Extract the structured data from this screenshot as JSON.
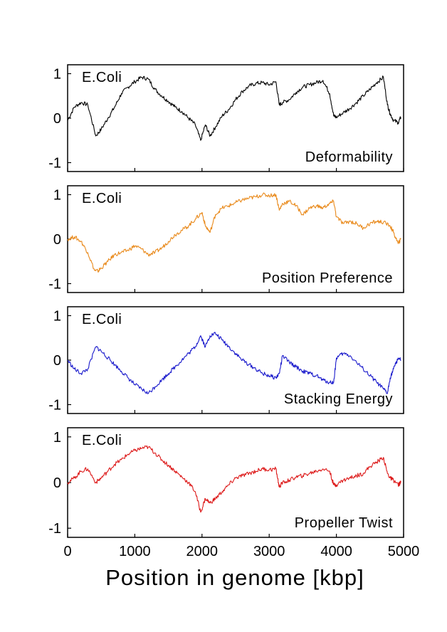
{
  "chart_data": {
    "type": "line",
    "xlabel": "Position in genome [kbp]",
    "xlim": [
      0,
      5000
    ],
    "xticks": [
      "0",
      "1000",
      "2000",
      "3000",
      "4000",
      "5000"
    ],
    "panels": [
      {
        "organism": "E.Coli",
        "name": "Deformability",
        "color": "#000000",
        "ylim": [
          -1.2,
          1.2
        ],
        "yticks": [
          "1",
          "0",
          "-1"
        ],
        "x": [
          0,
          100,
          200,
          300,
          420,
          500,
          600,
          700,
          800,
          900,
          1000,
          1100,
          1200,
          1300,
          1400,
          1500,
          1600,
          1700,
          1800,
          1900,
          1980,
          2050,
          2120,
          2200,
          2300,
          2400,
          2500,
          2600,
          2700,
          2800,
          2900,
          3000,
          3100,
          3150,
          3200,
          3300,
          3400,
          3500,
          3600,
          3700,
          3800,
          3900,
          3960,
          4000,
          4100,
          4200,
          4300,
          4400,
          4500,
          4600,
          4700,
          4760,
          4800,
          4850,
          4920,
          4960
        ],
        "y": [
          -0.05,
          0.25,
          0.35,
          0.3,
          -0.4,
          -0.25,
          0.0,
          0.25,
          0.55,
          0.7,
          0.82,
          0.92,
          0.88,
          0.65,
          0.5,
          0.38,
          0.25,
          0.15,
          0.0,
          -0.15,
          -0.5,
          -0.15,
          -0.4,
          -0.2,
          0.05,
          0.2,
          0.42,
          0.6,
          0.72,
          0.78,
          0.8,
          0.75,
          0.82,
          0.3,
          0.35,
          0.42,
          0.58,
          0.7,
          0.75,
          0.8,
          0.85,
          0.55,
          0.05,
          0.02,
          0.12,
          0.22,
          0.35,
          0.5,
          0.65,
          0.8,
          0.92,
          0.3,
          0.1,
          -0.05,
          -0.1,
          0.02
        ]
      },
      {
        "organism": "E.Coli",
        "name": "Position Preference",
        "color": "#e98a1c",
        "ylim": [
          -1.2,
          1.2
        ],
        "yticks": [
          "1",
          "0",
          "-1"
        ],
        "x": [
          0,
          100,
          200,
          300,
          400,
          450,
          500,
          600,
          700,
          800,
          900,
          1000,
          1100,
          1200,
          1300,
          1400,
          1500,
          1600,
          1700,
          1800,
          1900,
          2000,
          2050,
          2120,
          2200,
          2300,
          2400,
          2500,
          2600,
          2700,
          2800,
          2900,
          3000,
          3100,
          3150,
          3200,
          3300,
          3400,
          3500,
          3600,
          3700,
          3800,
          3900,
          3960,
          4000,
          4100,
          4200,
          4300,
          4400,
          4500,
          4600,
          4700,
          4800,
          4850,
          4920,
          4960
        ],
        "y": [
          0.0,
          0.05,
          -0.05,
          -0.3,
          -0.7,
          -0.72,
          -0.65,
          -0.5,
          -0.35,
          -0.3,
          -0.25,
          -0.15,
          -0.22,
          -0.35,
          -0.3,
          -0.2,
          -0.05,
          0.1,
          0.2,
          0.3,
          0.45,
          0.6,
          0.3,
          0.15,
          0.55,
          0.7,
          0.75,
          0.82,
          0.88,
          0.92,
          0.95,
          1.0,
          0.98,
          1.0,
          0.65,
          0.8,
          0.85,
          0.75,
          0.55,
          0.7,
          0.75,
          0.7,
          0.8,
          0.85,
          0.5,
          0.35,
          0.4,
          0.35,
          0.25,
          0.35,
          0.4,
          0.38,
          0.3,
          0.15,
          -0.1,
          0.0
        ]
      },
      {
        "organism": "E.Coli",
        "name": "Stacking Energy",
        "color": "#1a1acc",
        "ylim": [
          -1.2,
          1.2
        ],
        "yticks": [
          "1",
          "0",
          "-1"
        ],
        "x": [
          0,
          100,
          200,
          300,
          420,
          500,
          600,
          700,
          800,
          900,
          1000,
          1100,
          1200,
          1300,
          1400,
          1500,
          1600,
          1700,
          1800,
          1900,
          1980,
          2050,
          2120,
          2200,
          2300,
          2400,
          2500,
          2600,
          2700,
          2800,
          2900,
          3000,
          3100,
          3150,
          3200,
          3300,
          3400,
          3500,
          3600,
          3700,
          3800,
          3900,
          3960,
          4000,
          4100,
          4200,
          4300,
          4400,
          4500,
          4600,
          4700,
          4760,
          4800,
          4850,
          4920,
          4960
        ],
        "y": [
          0.0,
          -0.2,
          -0.3,
          -0.2,
          0.3,
          0.2,
          0.05,
          -0.1,
          -0.25,
          -0.4,
          -0.55,
          -0.65,
          -0.75,
          -0.6,
          -0.45,
          -0.3,
          -0.15,
          0.0,
          0.15,
          0.3,
          0.55,
          0.3,
          0.55,
          0.6,
          0.45,
          0.3,
          0.15,
          0.0,
          -0.1,
          -0.2,
          -0.3,
          -0.35,
          -0.4,
          -0.3,
          0.1,
          -0.05,
          -0.15,
          -0.25,
          -0.3,
          -0.35,
          -0.45,
          -0.5,
          -0.5,
          0.05,
          0.15,
          0.1,
          -0.05,
          -0.2,
          -0.35,
          -0.5,
          -0.65,
          -0.75,
          -0.4,
          -0.2,
          0.05,
          0.0
        ]
      },
      {
        "organism": "E.Coli",
        "name": "Propeller Twist",
        "color": "#dd1a1a",
        "ylim": [
          -1.2,
          1.2
        ],
        "yticks": [
          "1",
          "0",
          "-1"
        ],
        "x": [
          0,
          100,
          200,
          300,
          420,
          500,
          600,
          700,
          800,
          900,
          1000,
          1100,
          1200,
          1300,
          1400,
          1500,
          1600,
          1700,
          1800,
          1900,
          1980,
          2050,
          2120,
          2200,
          2300,
          2400,
          2500,
          2600,
          2700,
          2800,
          2900,
          3000,
          3100,
          3150,
          3200,
          3300,
          3400,
          3500,
          3600,
          3700,
          3800,
          3900,
          3960,
          4000,
          4100,
          4200,
          4300,
          4400,
          4500,
          4600,
          4700,
          4760,
          4800,
          4850,
          4920,
          4960
        ],
        "y": [
          0.0,
          0.1,
          0.25,
          0.3,
          0.0,
          0.1,
          0.25,
          0.4,
          0.5,
          0.62,
          0.7,
          0.75,
          0.78,
          0.65,
          0.5,
          0.38,
          0.25,
          0.12,
          0.0,
          -0.2,
          -0.65,
          -0.35,
          -0.45,
          -0.35,
          -0.2,
          -0.05,
          0.1,
          0.15,
          0.2,
          0.25,
          0.3,
          0.28,
          0.3,
          -0.1,
          0.0,
          0.05,
          0.12,
          0.15,
          0.2,
          0.25,
          0.3,
          0.25,
          -0.05,
          -0.05,
          0.05,
          0.1,
          0.15,
          0.2,
          0.35,
          0.45,
          0.55,
          0.2,
          0.1,
          0.05,
          -0.05,
          0.0
        ]
      }
    ]
  }
}
